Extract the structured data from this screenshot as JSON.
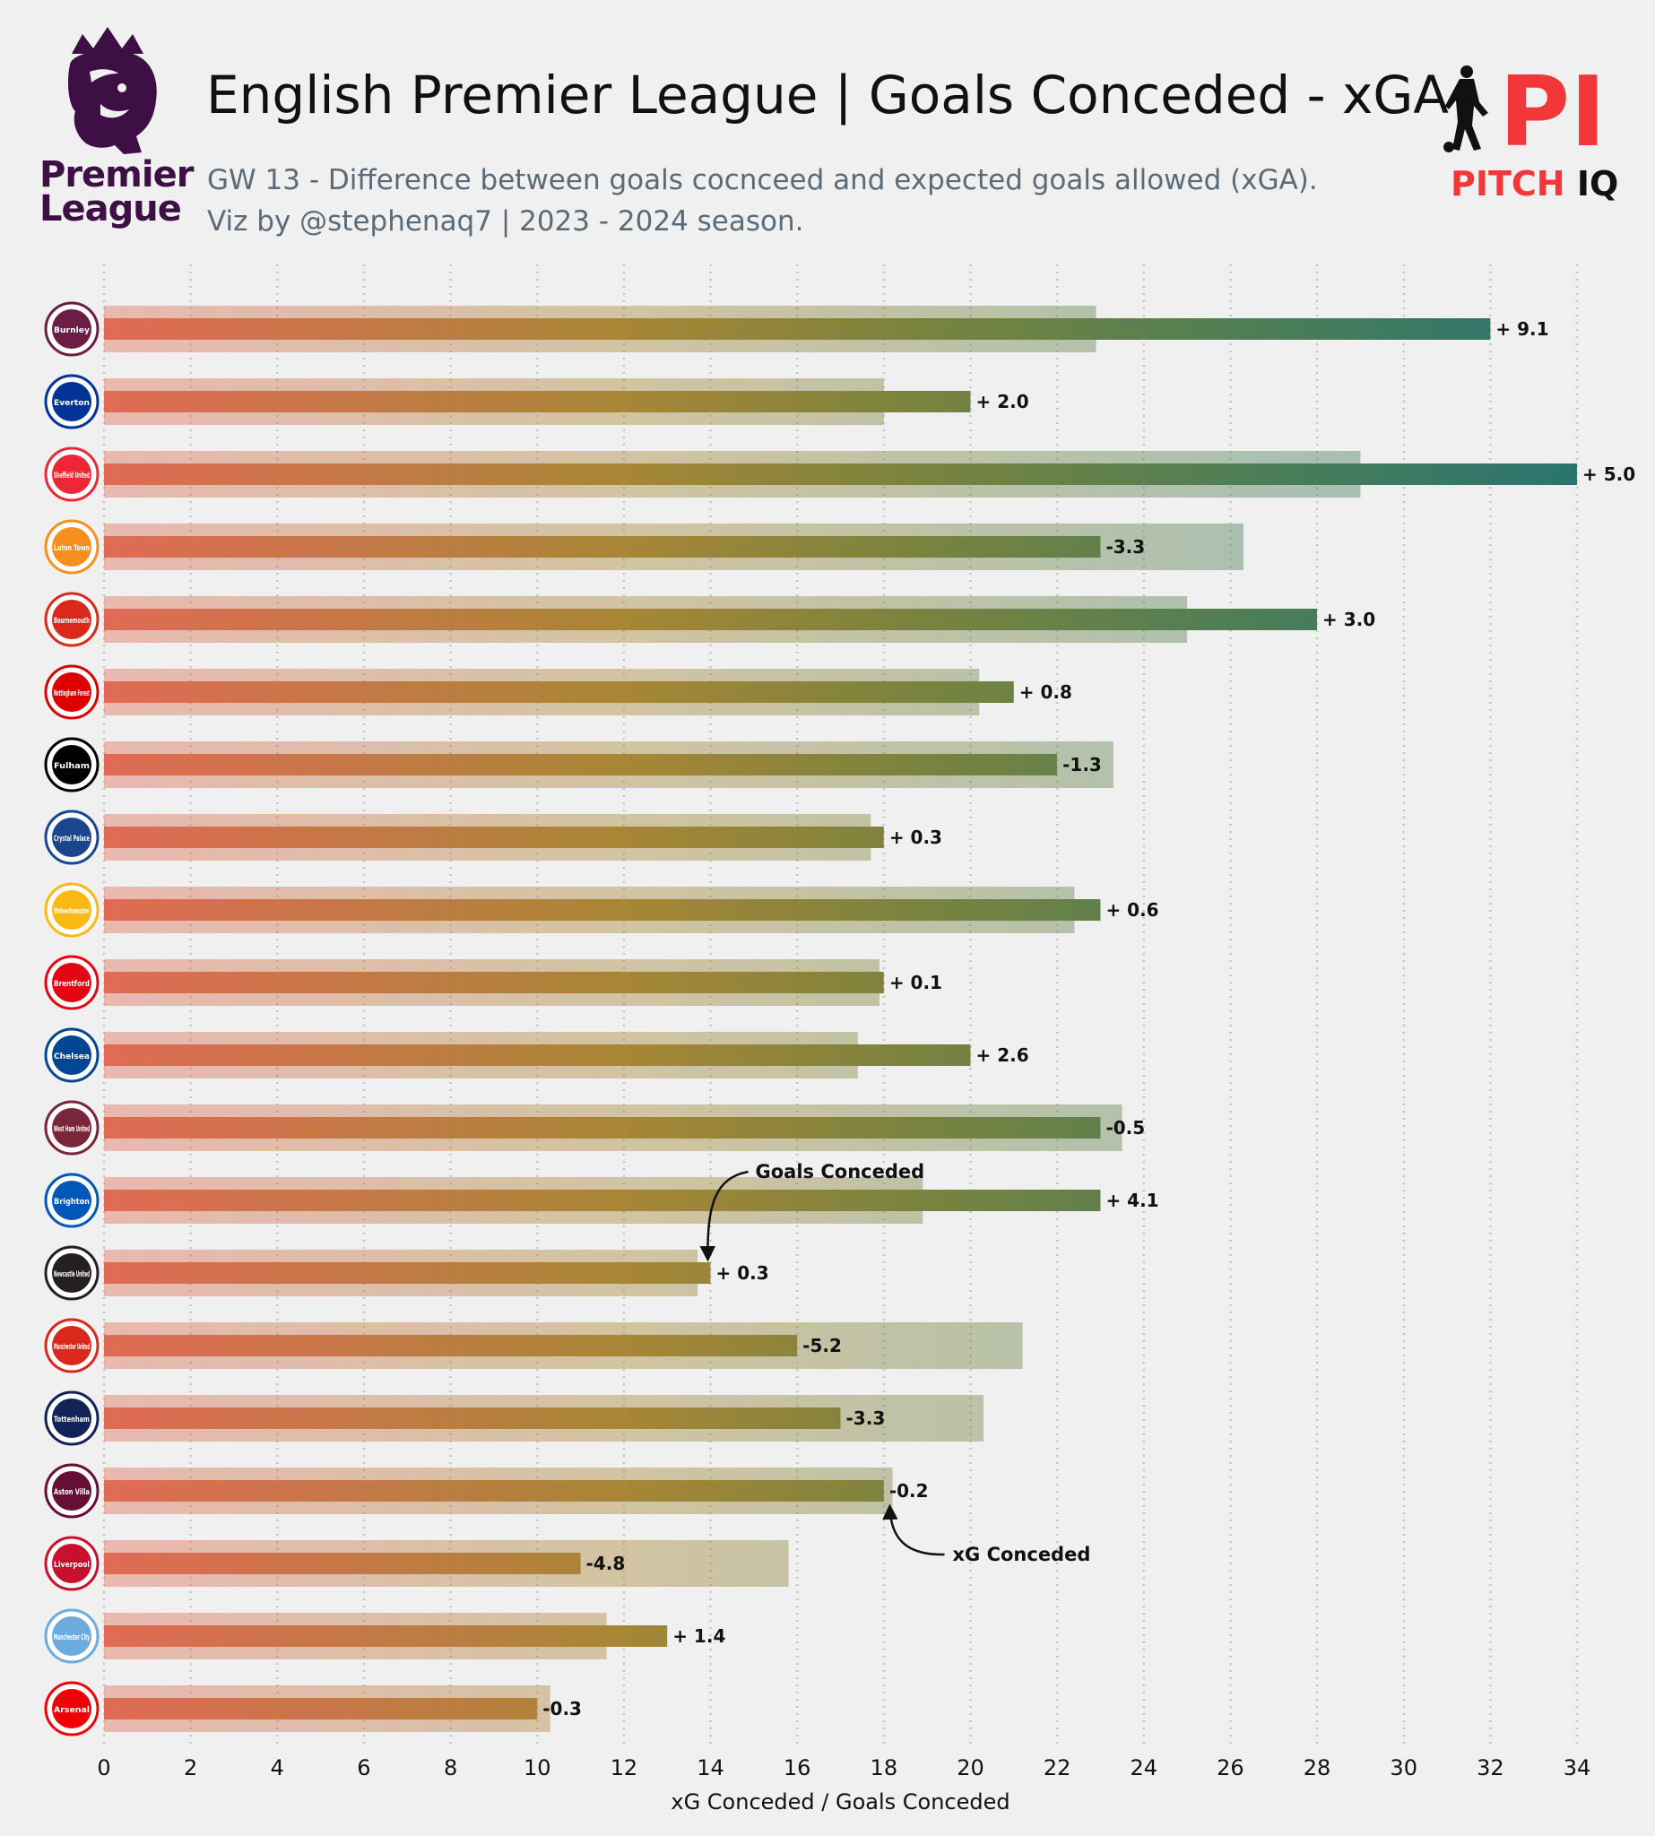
{
  "header": {
    "title": "English Premier League | Goals Conceded - xGA",
    "subtitle_line1": "GW 13 - Difference between goals cocnceed and expected goals allowed (xGA).",
    "subtitle_line2": "Viz by @stephenaq7 | 2023 - 2024 season.",
    "league_logo_text_1": "Premier",
    "league_logo_text_2": "League",
    "brand_logo_mark": "PI",
    "brand_name_1": "PITCH",
    "brand_name_2": "IQ"
  },
  "colors": {
    "background": "#f0f0f0",
    "gradient_start": "#e06b55",
    "gradient_mid": "#a88636",
    "gradient_2": "#7a833e",
    "gradient_3": "#4d7e56",
    "gradient_end": "#2a7470",
    "league_purple": "#3d0f44",
    "brand_red": "#f2373b"
  },
  "chart_data": {
    "type": "bar",
    "orientation": "horizontal",
    "xlabel": "xG Conceded / Goals Conceded",
    "xlim": [
      0,
      34
    ],
    "xticks": [
      0,
      2,
      4,
      6,
      8,
      10,
      12,
      14,
      16,
      18,
      20,
      22,
      24,
      26,
      28,
      30,
      32,
      34
    ],
    "grid": "vertical dotted",
    "categories": [
      "Burnley",
      "Everton",
      "Sheffield United",
      "Luton Town",
      "Bournemouth",
      "Nottingham Forest",
      "Fulham",
      "Crystal Palace",
      "Wolverhampton",
      "Brentford",
      "Chelsea",
      "West Ham United",
      "Brighton",
      "Newcastle United",
      "Manchester United",
      "Tottenham",
      "Aston Villa",
      "Liverpool",
      "Manchester City",
      "Arsenal"
    ],
    "series": [
      {
        "name": "xG Conceded",
        "values": [
          22.9,
          18.0,
          29.0,
          26.3,
          25.0,
          20.2,
          23.3,
          17.7,
          22.4,
          17.9,
          17.4,
          23.5,
          18.9,
          13.7,
          21.2,
          20.3,
          18.2,
          15.8,
          11.6,
          10.3
        ]
      },
      {
        "name": "Goals Conceded",
        "values": [
          32,
          20,
          34,
          23,
          28,
          21,
          22,
          18,
          23,
          18,
          20,
          23,
          23,
          14,
          16,
          17,
          18,
          11,
          13,
          10
        ]
      }
    ],
    "difference_labels": [
      "+ 9.1",
      "+ 2.0",
      "+ 5.0",
      "-3.3",
      "+ 3.0",
      "+ 0.8",
      "-1.3",
      "+ 0.3",
      "+ 0.6",
      "+ 0.1",
      "+ 2.6",
      "-0.5",
      "+ 4.1",
      "+ 0.3",
      "-5.2",
      "-3.3",
      "-0.2",
      "-4.8",
      "+ 1.4",
      "-0.3"
    ],
    "badge_colors": [
      "#6c1d45",
      "#003399",
      "#ee2737",
      "#f78f1e",
      "#da291c",
      "#dd0000",
      "#000000",
      "#1b458f",
      "#fdb913",
      "#e30613",
      "#034694",
      "#7a263a",
      "#0057b8",
      "#241f20",
      "#da291c",
      "#132257",
      "#670e36",
      "#c8102e",
      "#6cabdd",
      "#ef0107"
    ],
    "annotations": [
      {
        "text": "Goals Conceded",
        "points_to_team": "Newcastle United",
        "points_to_series": "Goals Conceded"
      },
      {
        "text": "xG Conceded",
        "points_to_team": "Aston Villa",
        "points_to_series": "xG Conceded"
      }
    ]
  }
}
